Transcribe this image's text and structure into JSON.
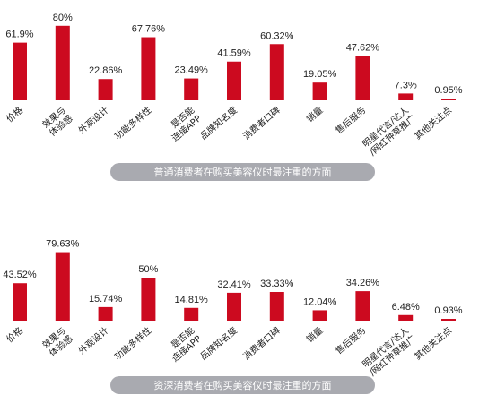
{
  "colors": {
    "bar": "#cc0a1f",
    "pill": "#a9aab0",
    "text": "#222222"
  },
  "chart_data": [
    {
      "type": "bar",
      "title": "普通消费者在购买美容仪时最注重的方面",
      "categories": [
        "价格",
        "效果与\n体验感",
        "外观设计",
        "功能多样性",
        "是否能\n连接APP",
        "品牌知名度",
        "消费者口碑",
        "销量",
        "售后服务",
        "明星代言/达人\n/网红种草推广",
        "其他关注点"
      ],
      "values": [
        61.9,
        80,
        22.86,
        67.76,
        23.49,
        41.59,
        60.32,
        19.05,
        47.62,
        7.3,
        0.95
      ],
      "value_labels": [
        "61.9%",
        "80%",
        "22.86%",
        "67.76%",
        "23.49%",
        "41.59%",
        "60.32%",
        "19.05%",
        "47.62%",
        "7.3%",
        "0.95%"
      ],
      "xlabel": "",
      "ylabel": "",
      "grid": false
    },
    {
      "type": "bar",
      "title": "资深消费者在购买美容仪时最注重的方面",
      "categories": [
        "价格",
        "效果与\n体验感",
        "外观设计",
        "功能多样性",
        "是否能\n连接APP",
        "品牌知名度",
        "消费者口碑",
        "销量",
        "售后服务",
        "明星代言/达人\n/网红种草推广",
        "其他关注点"
      ],
      "values": [
        43.52,
        79.63,
        15.74,
        50,
        14.81,
        32.41,
        33.33,
        12.04,
        34.26,
        6.48,
        0.93
      ],
      "value_labels": [
        "43.52%",
        "79.63%",
        "15.74%",
        "50%",
        "14.81%",
        "32.41%",
        "33.33%",
        "12.04%",
        "34.26%",
        "6.48%",
        "0.93%"
      ],
      "xlabel": "",
      "ylabel": "",
      "grid": false
    }
  ]
}
